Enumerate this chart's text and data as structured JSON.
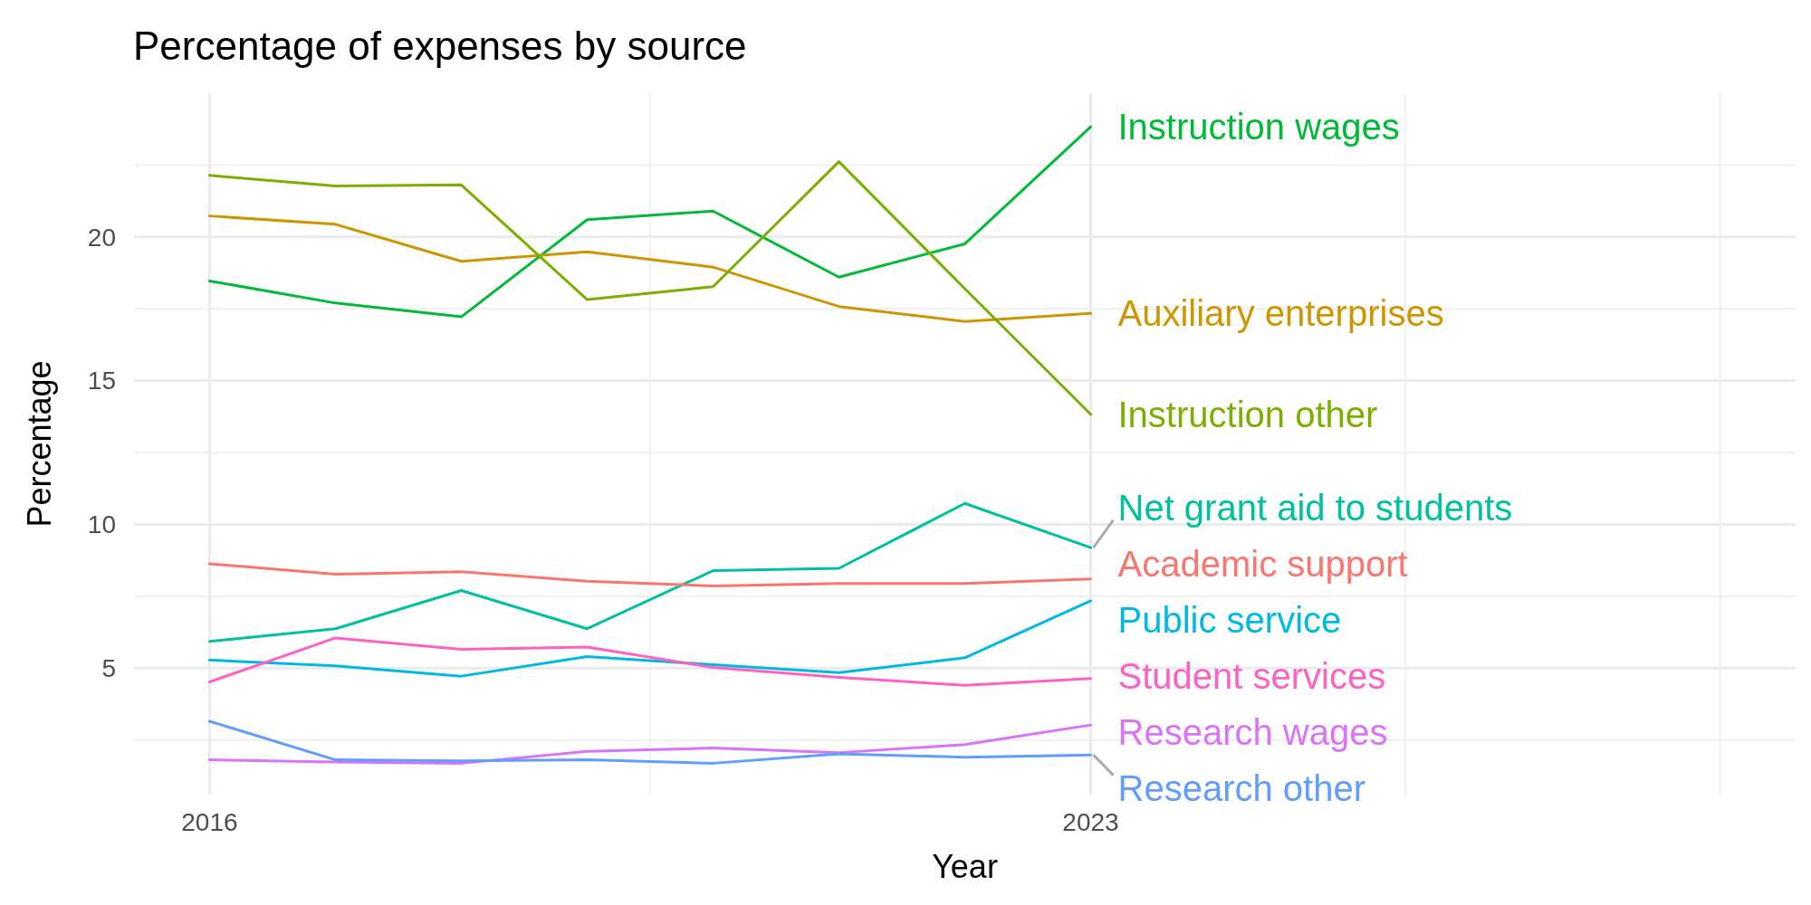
{
  "chart_data": {
    "type": "line",
    "title": "Percentage of expenses by source",
    "xlabel": "Year",
    "ylabel": "Percentage",
    "x": [
      2016,
      2017,
      2018,
      2019,
      2020,
      2021,
      2022,
      2023
    ],
    "xlim": [
      2015.4,
      2028.6
    ],
    "xticks": [
      2016,
      {
        "value": 2019.5,
        "label": null
      },
      2023,
      {
        "value": 2025.5,
        "label": null
      },
      {
        "value": 2028,
        "label": null
      }
    ],
    "ylim": [
      0.6,
      25
    ],
    "yticks": [
      {
        "value": 2.5,
        "label": null
      },
      5,
      {
        "value": 7.5,
        "label": null
      },
      10,
      {
        "value": 12.5,
        "label": null
      },
      15,
      {
        "value": 17.5,
        "label": null
      },
      20,
      {
        "value": 22.5,
        "label": null
      }
    ],
    "grid": true,
    "legend": false,
    "series": [
      {
        "name": "Instruction wages",
        "color": "#00ba38",
        "values": [
          18.47,
          17.7,
          17.22,
          20.6,
          20.9,
          18.6,
          19.76,
          23.83
        ]
      },
      {
        "name": "Auxiliary enterprises",
        "color": "#cd9600",
        "values": [
          20.73,
          20.44,
          19.15,
          19.48,
          18.95,
          17.58,
          17.06,
          17.34
        ]
      },
      {
        "name": "Instruction other",
        "color": "#7cae00",
        "values": [
          22.14,
          21.77,
          21.81,
          17.82,
          18.27,
          22.62,
          18.2,
          13.83
        ]
      },
      {
        "name": "Net grant aid to students",
        "color": "#00c19f",
        "values": [
          5.93,
          6.37,
          7.7,
          6.37,
          8.39,
          8.47,
          10.73,
          9.19
        ]
      },
      {
        "name": "Academic support",
        "color": "#f8766d",
        "values": [
          8.63,
          8.27,
          8.35,
          8.02,
          7.86,
          7.94,
          7.94,
          8.1
        ]
      },
      {
        "name": "Public service",
        "color": "#00b9e3",
        "values": [
          5.28,
          5.08,
          4.72,
          5.4,
          5.12,
          4.84,
          5.36,
          7.34
        ]
      },
      {
        "name": "Student services",
        "color": "#ff61c3",
        "values": [
          4.52,
          6.05,
          5.65,
          5.73,
          5.02,
          4.68,
          4.4,
          4.64
        ]
      },
      {
        "name": "Research wages",
        "color": "#db72fb",
        "values": [
          1.81,
          1.73,
          1.69,
          2.1,
          2.22,
          2.06,
          2.34,
          3.02
        ]
      },
      {
        "name": "Research other",
        "color": "#619cff",
        "values": [
          3.15,
          1.81,
          1.77,
          1.81,
          1.69,
          2.02,
          1.9,
          1.98
        ]
      }
    ]
  }
}
